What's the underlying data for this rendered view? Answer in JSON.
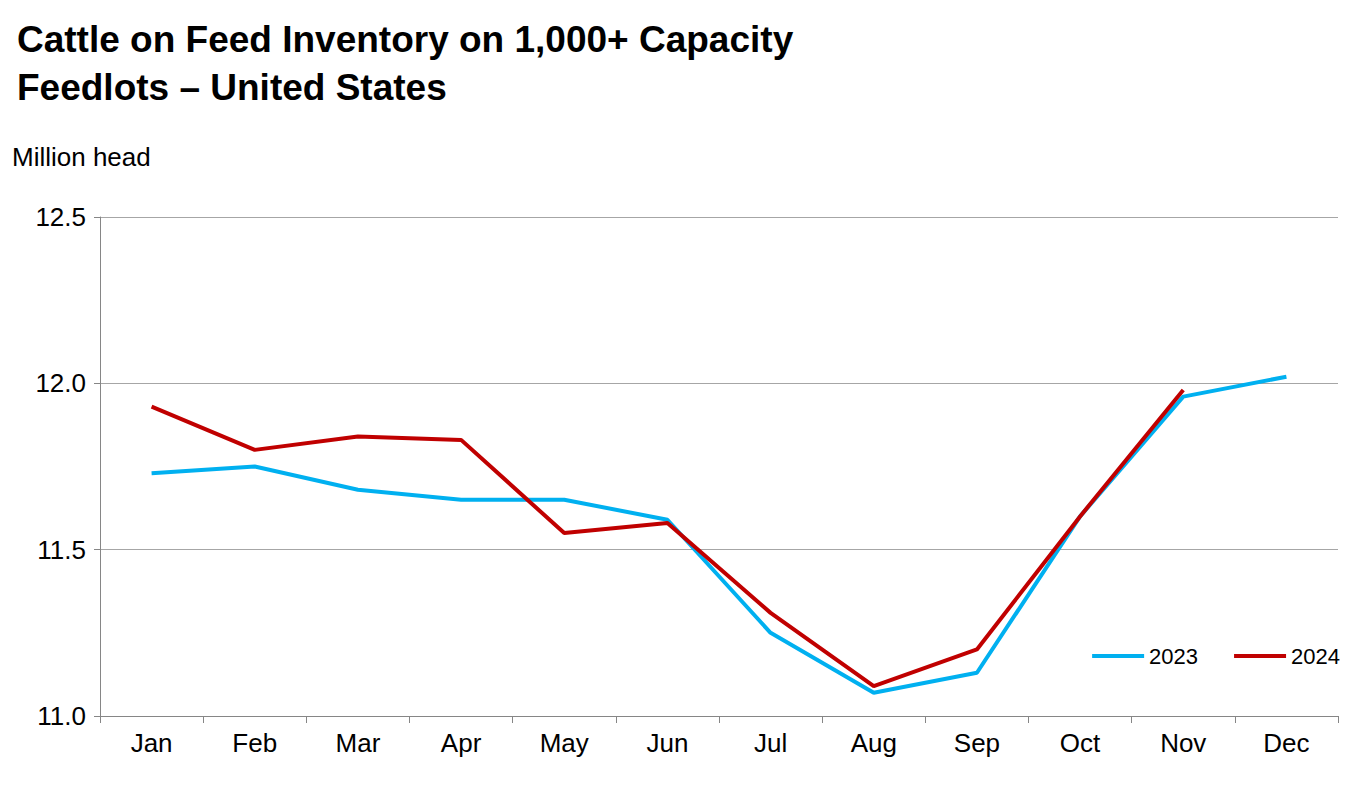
{
  "chart_data": {
    "type": "line",
    "title": "Cattle on Feed Inventory on 1,000+ Capacity Feedlots – United States",
    "y_label": "Million head",
    "categories": [
      "Jan",
      "Feb",
      "Mar",
      "Apr",
      "May",
      "Jun",
      "Jul",
      "Aug",
      "Sep",
      "Oct",
      "Nov",
      "Dec"
    ],
    "series": [
      {
        "name": "2023",
        "color": "#00b0f0",
        "values": [
          11.73,
          11.75,
          11.68,
          11.65,
          11.65,
          11.59,
          11.25,
          11.07,
          11.13,
          11.6,
          11.96,
          12.02
        ]
      },
      {
        "name": "2024",
        "color": "#c00000",
        "values": [
          11.93,
          11.8,
          11.84,
          11.83,
          11.55,
          11.58,
          11.31,
          11.09,
          11.2,
          11.6,
          11.98,
          null
        ]
      }
    ],
    "ylim": [
      11.0,
      12.5
    ],
    "yticks": [
      {
        "value": 11.0,
        "label": "11.0"
      },
      {
        "value": 11.5,
        "label": "11.5"
      },
      {
        "value": 12.0,
        "label": "12.0"
      },
      {
        "value": 12.5,
        "label": "12.5"
      }
    ],
    "grid": true,
    "legend": "lower right"
  }
}
